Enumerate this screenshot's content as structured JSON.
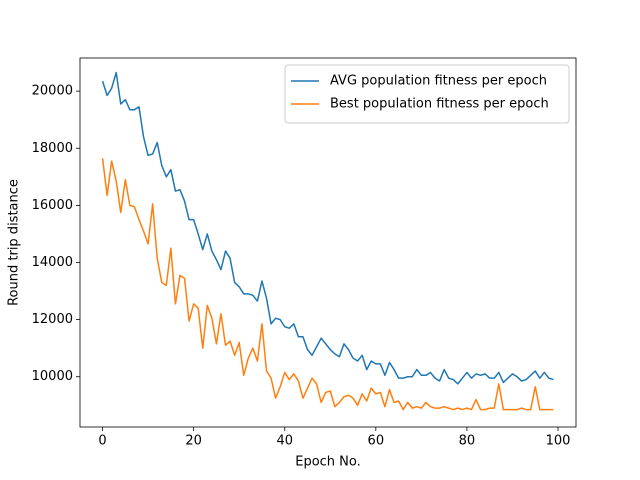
{
  "chart_data": {
    "type": "line",
    "xlabel": "Epoch No.",
    "ylabel": "Round trip distance",
    "x": [
      0,
      1,
      2,
      3,
      4,
      5,
      6,
      7,
      8,
      9,
      10,
      11,
      12,
      13,
      14,
      15,
      16,
      17,
      18,
      19,
      20,
      21,
      22,
      23,
      24,
      25,
      26,
      27,
      28,
      29,
      30,
      31,
      32,
      33,
      34,
      35,
      36,
      37,
      38,
      39,
      40,
      41,
      42,
      43,
      44,
      45,
      46,
      47,
      48,
      49,
      50,
      51,
      52,
      53,
      54,
      55,
      56,
      57,
      58,
      59,
      60,
      61,
      62,
      63,
      64,
      65,
      66,
      67,
      68,
      69,
      70,
      71,
      72,
      73,
      74,
      75,
      76,
      77,
      78,
      79,
      80,
      81,
      82,
      83,
      84,
      85,
      86,
      87,
      88,
      89,
      90,
      91,
      92,
      93,
      94,
      95,
      96,
      97,
      98,
      99
    ],
    "series": [
      {
        "name": "AVG population fitness per epoch",
        "color": "#1f77b4",
        "values": [
          20350,
          19850,
          20100,
          20650,
          19550,
          19700,
          19350,
          19350,
          19450,
          18400,
          17750,
          17800,
          18200,
          17400,
          17000,
          17250,
          16500,
          16550,
          16150,
          15500,
          15500,
          15000,
          14450,
          15000,
          14400,
          14100,
          13750,
          14400,
          14150,
          13300,
          13150,
          12900,
          12900,
          12850,
          12650,
          13350,
          12750,
          11850,
          12050,
          12000,
          11750,
          11700,
          11850,
          11400,
          11400,
          10950,
          10750,
          11050,
          11350,
          11150,
          10950,
          10800,
          10700,
          11150,
          10950,
          10650,
          10550,
          10750,
          10250,
          10550,
          10450,
          10450,
          10050,
          10500,
          10250,
          9950,
          9950,
          10000,
          10000,
          10250,
          10050,
          10050,
          10150,
          9950,
          9850,
          10250,
          9950,
          9900,
          9750,
          9950,
          10150,
          9950,
          10100,
          10050,
          10100,
          9950,
          9950,
          10150,
          9800,
          9950,
          10100,
          10000,
          9850,
          9900,
          10050,
          10200,
          9950,
          10150,
          9950,
          9900
        ]
      },
      {
        "name": "Best population fitness per epoch",
        "color": "#ff7f0e",
        "values": [
          17650,
          16350,
          17550,
          16850,
          15750,
          16900,
          16000,
          15950,
          15500,
          15100,
          14650,
          16050,
          14150,
          13300,
          13200,
          14500,
          12550,
          13550,
          13450,
          11950,
          12550,
          12400,
          11000,
          12500,
          12050,
          11150,
          12200,
          11100,
          11250,
          10750,
          11200,
          10050,
          10650,
          11000,
          10550,
          11850,
          10200,
          9950,
          9250,
          9650,
          10150,
          9900,
          10100,
          9850,
          9250,
          9600,
          9950,
          9750,
          9100,
          9450,
          9500,
          8950,
          9100,
          9300,
          9350,
          9250,
          9000,
          9400,
          9150,
          9600,
          9400,
          9450,
          8950,
          9550,
          9100,
          9150,
          8850,
          9100,
          8900,
          8950,
          8900,
          9100,
          8950,
          8900,
          8900,
          8950,
          8900,
          8850,
          8900,
          8850,
          8900,
          8850,
          9200,
          8850,
          8850,
          8900,
          8900,
          9750,
          8850,
          8850,
          8850,
          8850,
          8900,
          8850,
          8850,
          9650,
          8850,
          8850,
          8850,
          8850
        ]
      }
    ],
    "xlim": [
      -4.95,
      103.95
    ],
    "ylim": [
      8240,
      21160
    ],
    "xticks": [
      0,
      20,
      40,
      60,
      80,
      100
    ],
    "yticks": [
      10000,
      12000,
      14000,
      16000,
      18000,
      20000
    ],
    "grid": false,
    "legend": "upper right"
  }
}
